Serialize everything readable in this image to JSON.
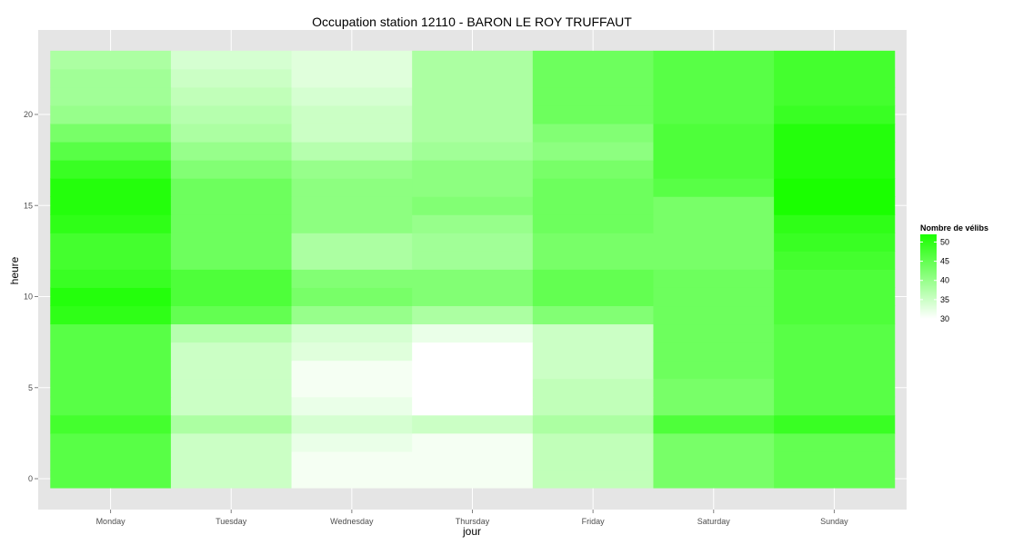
{
  "chart_data": {
    "type": "heatmap",
    "title": "Occupation station 12110 - BARON LE ROY TRUFFAUT",
    "xlabel": "jour",
    "ylabel": "heure",
    "x_categories": [
      "Monday",
      "Tuesday",
      "Wednesday",
      "Thursday",
      "Friday",
      "Saturday",
      "Sunday"
    ],
    "y_range": [
      0,
      23
    ],
    "y_ticks": [
      0,
      5,
      10,
      15,
      20
    ],
    "y_tick_labels": [
      "0",
      "5",
      "10",
      "15",
      "20"
    ],
    "values": [
      [
        46,
        35,
        31,
        31,
        36,
        43,
        45
      ],
      [
        46,
        35,
        31,
        31,
        36,
        43,
        45
      ],
      [
        46,
        35,
        32,
        31,
        36,
        43,
        45
      ],
      [
        48,
        38,
        34,
        35,
        38,
        47,
        49
      ],
      [
        46,
        35,
        32,
        30,
        36,
        43,
        46
      ],
      [
        46,
        35,
        31,
        30,
        36,
        43,
        46
      ],
      [
        46,
        35,
        31,
        30,
        35,
        44,
        46
      ],
      [
        46,
        35,
        33,
        30,
        35,
        44,
        46
      ],
      [
        46,
        37,
        34,
        32,
        35,
        44,
        46
      ],
      [
        50,
        45,
        40,
        38,
        42,
        44,
        47
      ],
      [
        51,
        47,
        43,
        42,
        45,
        44,
        47
      ],
      [
        49,
        47,
        42,
        42,
        45,
        44,
        47
      ],
      [
        48,
        44,
        38,
        39,
        43,
        43,
        48
      ],
      [
        48,
        44,
        38,
        39,
        43,
        43,
        49
      ],
      [
        50,
        44,
        41,
        40,
        44,
        43,
        50
      ],
      [
        51,
        44,
        41,
        42,
        44,
        43,
        52
      ],
      [
        51,
        44,
        41,
        41,
        44,
        46,
        52
      ],
      [
        49,
        42,
        40,
        41,
        43,
        47,
        51
      ],
      [
        46,
        40,
        37,
        39,
        41,
        47,
        51
      ],
      [
        43,
        38,
        35,
        38,
        42,
        47,
        51
      ],
      [
        40,
        37,
        35,
        38,
        44,
        46,
        49
      ],
      [
        39,
        36,
        34,
        38,
        44,
        46,
        48
      ],
      [
        39,
        35,
        33,
        38,
        44,
        46,
        48
      ],
      [
        38,
        34,
        33,
        38,
        44,
        46,
        48
      ]
    ],
    "color_scale": {
      "low": "#ffffff",
      "high": "#1aff00",
      "min": 30,
      "max": 52
    },
    "legend": {
      "title": "Nombre de vélibs",
      "labels": [
        "50",
        "45",
        "40",
        "35",
        "30"
      ],
      "values": [
        50,
        45,
        40,
        35,
        30
      ],
      "position": "right"
    },
    "grid": true,
    "panel_background": "#e5e5e5",
    "grid_color": "#ffffff"
  }
}
